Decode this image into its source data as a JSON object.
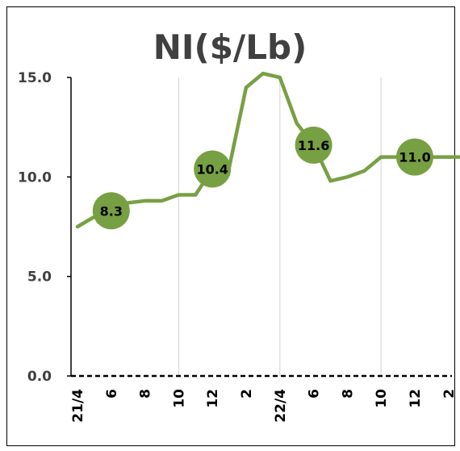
{
  "chart_data": {
    "type": "line",
    "title": "NI($/Lb)",
    "xlabel": "",
    "ylabel": "",
    "ylim": [
      0,
      15
    ],
    "yticks": [
      {
        "value": 0,
        "label": "0.0"
      },
      {
        "value": 5,
        "label": "5.0"
      },
      {
        "value": 10,
        "label": "10.0"
      },
      {
        "value": 15,
        "label": "15.0"
      }
    ],
    "x": [
      "21/4",
      "21/5",
      "21/6",
      "21/7",
      "21/8",
      "21/9",
      "21/10",
      "21/11",
      "21/12",
      "22/1",
      "22/2",
      "22/3",
      "22/4",
      "22/5",
      "22/6",
      "22/7",
      "22/8",
      "22/9",
      "22/10",
      "22/11",
      "22/12",
      "23/1",
      "23/2",
      "23/3"
    ],
    "x_tick_labels": [
      {
        "index": 0,
        "label": "21/4"
      },
      {
        "index": 2,
        "label": "6"
      },
      {
        "index": 4,
        "label": "8"
      },
      {
        "index": 6,
        "label": "10"
      },
      {
        "index": 8,
        "label": "12"
      },
      {
        "index": 10,
        "label": "2"
      },
      {
        "index": 12,
        "label": "22/4"
      },
      {
        "index": 14,
        "label": "6"
      },
      {
        "index": 16,
        "label": "8"
      },
      {
        "index": 18,
        "label": "10"
      },
      {
        "index": 20,
        "label": "12"
      },
      {
        "index": 22,
        "label": "2"
      }
    ],
    "vertical_gridlines_at_index": [
      6,
      12,
      18
    ],
    "series": [
      {
        "color": "#77a043",
        "values": [
          7.5,
          8.0,
          8.3,
          8.7,
          8.8,
          8.8,
          9.1,
          9.1,
          10.4,
          10.5,
          14.5,
          15.2,
          15.0,
          12.7,
          11.6,
          9.8,
          10.0,
          10.3,
          11.0,
          11.0,
          11.0,
          11.0,
          11.0,
          11.0
        ]
      }
    ],
    "data_labels": [
      {
        "index": 2,
        "label": "8.3"
      },
      {
        "index": 8,
        "label": "10.4"
      },
      {
        "index": 14,
        "label": "11.6"
      },
      {
        "index": 20,
        "label": "11.0"
      }
    ],
    "colors": {
      "line": "#77a043",
      "marker": "#77a043",
      "grid": "#d9d9d9",
      "axis": "#000000"
    },
    "grid": "vertical-only",
    "legend": "none"
  }
}
